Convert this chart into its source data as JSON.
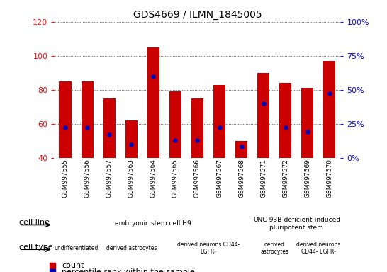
{
  "title": "GDS4669 / ILMN_1845005",
  "samples": [
    "GSM997555",
    "GSM997556",
    "GSM997557",
    "GSM997563",
    "GSM997564",
    "GSM997565",
    "GSM997566",
    "GSM997567",
    "GSM997568",
    "GSM997571",
    "GSM997572",
    "GSM997569",
    "GSM997570"
  ],
  "counts": [
    85,
    85,
    75,
    62,
    105,
    79,
    75,
    83,
    50,
    90,
    84,
    81,
    97
  ],
  "percentile_ranks": [
    22,
    22,
    17,
    10,
    60,
    13,
    13,
    22,
    8,
    40,
    22,
    19,
    47
  ],
  "ylim_left": [
    40,
    120
  ],
  "ylim_right": [
    0,
    100
  ],
  "yticks_left": [
    40,
    60,
    80,
    100,
    120
  ],
  "yticks_right": [
    0,
    25,
    50,
    75,
    100
  ],
  "yticklabels_right": [
    "0%",
    "25%",
    "50%",
    "75%",
    "100%"
  ],
  "bar_color": "#cc0000",
  "dot_color": "#0000bb",
  "bar_bottom": 40,
  "cell_line_groups": [
    {
      "label": "embryonic stem cell H9",
      "start": 0,
      "end": 9,
      "color": "#aaeaaa"
    },
    {
      "label": "UNC-93B-deficient-induced\npluripotent stem",
      "start": 9,
      "end": 13,
      "color": "#44dd44"
    }
  ],
  "cell_type_groups": [
    {
      "label": "undifferentiated",
      "start": 0,
      "end": 2,
      "color": "#ee88ee"
    },
    {
      "label": "derived astrocytes",
      "start": 2,
      "end": 5,
      "color": "#ee88ee"
    },
    {
      "label": "derived neurons CD44-\nEGFR-",
      "start": 5,
      "end": 9,
      "color": "#ee88ee"
    },
    {
      "label": "derived\nastrocytes",
      "start": 9,
      "end": 11,
      "color": "#ee88ee"
    },
    {
      "label": "derived neurons\nCD44- EGFR-",
      "start": 11,
      "end": 13,
      "color": "#ee88ee"
    }
  ],
  "xtick_bg_color": "#cccccc",
  "cell_line_label": "cell line",
  "cell_type_label": "cell type",
  "legend_items": [
    {
      "label": "count",
      "color": "#cc0000"
    },
    {
      "label": "percentile rank within the sample",
      "color": "#0000bb"
    }
  ],
  "figsize": [
    5.46,
    3.84
  ],
  "dpi": 100
}
